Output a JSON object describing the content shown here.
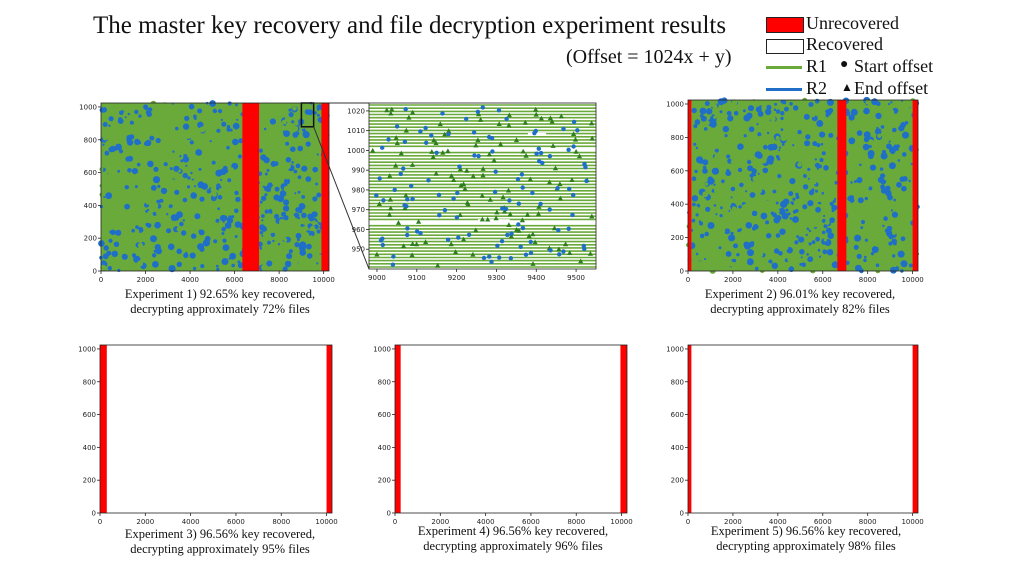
{
  "header": {
    "title": "The master key recovery and file decryption experiment results",
    "formula": "(Offset = 1024x + y)"
  },
  "legend": {
    "unrecovered": "Unrecovered",
    "recovered": "Recovered",
    "r1": "R1",
    "r2": "R2",
    "start_offset": "Start offset",
    "end_offset": "End offset",
    "colors": {
      "unrecovered": "#ff0000",
      "r1": "#6aaa3a",
      "r2": "#1f6fc8",
      "recovered_fill": "#ffffff"
    }
  },
  "chart_data": [
    {
      "type": "heatmap",
      "id": "exp1",
      "caption": [
        "Experiment 1) 92.65% key recovered,",
        "decrypting approximately 72% files"
      ],
      "xlim": [
        0,
        10240
      ],
      "ylim": [
        0,
        1024
      ],
      "xticks": [
        0,
        2000,
        4000,
        6000,
        8000,
        10000
      ],
      "yticks": [
        0,
        200,
        400,
        600,
        800,
        1000
      ],
      "background": "r1_r2_dense",
      "unrecovered_x_ranges": [
        [
          6350,
          7100
        ],
        [
          9900,
          10240
        ]
      ],
      "zoom_box": {
        "x": [
          9000,
          9550
        ],
        "y": [
          940,
          1024
        ]
      }
    },
    {
      "type": "scatter",
      "id": "exp1_zoom",
      "xlim": [
        8980,
        9550
      ],
      "ylim": [
        940,
        1024
      ],
      "xticks": [
        9000,
        9100,
        9200,
        9300,
        9400,
        9500
      ],
      "yticks": [
        950,
        960,
        970,
        980,
        990,
        1000,
        1010,
        1020
      ],
      "series": [
        {
          "name": "R1",
          "color": "#6aaa3a",
          "marker": "triangle"
        },
        {
          "name": "R2",
          "color": "#1f6fc8",
          "marker": "circle"
        }
      ]
    },
    {
      "type": "heatmap",
      "id": "exp2",
      "caption": [
        "Experiment 2) 96.01% key recovered,",
        "decrypting approximately 82% files"
      ],
      "xlim": [
        0,
        10240
      ],
      "ylim": [
        0,
        1024
      ],
      "xticks": [
        0,
        2000,
        4000,
        6000,
        8000,
        10000
      ],
      "yticks": [
        0,
        200,
        400,
        600,
        800,
        1000
      ],
      "background": "r1_r2_dense",
      "unrecovered_x_ranges": [
        [
          0,
          150
        ],
        [
          6650,
          7050
        ],
        [
          10000,
          10240
        ]
      ]
    },
    {
      "type": "heatmap",
      "id": "exp3",
      "caption": [
        "Experiment 3) 96.56% key recovered,",
        "decrypting approximately 95% files"
      ],
      "xlim": [
        0,
        10240
      ],
      "ylim": [
        0,
        1024
      ],
      "xticks": [
        0,
        2000,
        4000,
        6000,
        8000,
        10000
      ],
      "yticks": [
        0,
        200,
        400,
        600,
        800,
        1000
      ],
      "background": "recovered",
      "unrecovered_x_ranges": [
        [
          0,
          300
        ],
        [
          10000,
          10240
        ]
      ]
    },
    {
      "type": "heatmap",
      "id": "exp4",
      "caption": [
        "Experiment 4) 96.56% key recovered,",
        "decrypting approximately 96% files"
      ],
      "xlim": [
        0,
        10240
      ],
      "ylim": [
        0,
        1024
      ],
      "xticks": [
        0,
        2000,
        4000,
        6000,
        8000,
        10000
      ],
      "yticks": [
        0,
        200,
        400,
        600,
        800,
        1000
      ],
      "background": "recovered",
      "unrecovered_x_ranges": [
        [
          0,
          250
        ],
        [
          9950,
          10240
        ]
      ]
    },
    {
      "type": "heatmap",
      "id": "exp5",
      "caption": [
        "Experiment 5) 96.56% key recovered,",
        "decrypting approximately 98% files"
      ],
      "xlim": [
        0,
        10240
      ],
      "ylim": [
        0,
        1024
      ],
      "xticks": [
        0,
        2000,
        4000,
        6000,
        8000,
        10000
      ],
      "yticks": [
        0,
        200,
        400,
        600,
        800,
        1000
      ],
      "background": "recovered",
      "unrecovered_x_ranges": [
        [
          0,
          150
        ],
        [
          10000,
          10240
        ]
      ]
    }
  ]
}
